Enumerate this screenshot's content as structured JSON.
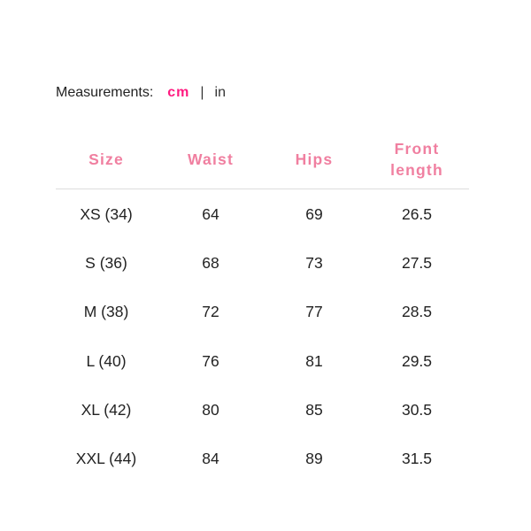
{
  "measurements": {
    "label": "Measurements:",
    "active_unit": "cm",
    "separator": "|",
    "other_unit": "in",
    "accent_color": "#ff1a80"
  },
  "table": {
    "header_color": "#f07fa0",
    "headers": [
      "Size",
      "Waist",
      "Hips",
      "Front length"
    ],
    "rows": [
      [
        "XS (34)",
        "64",
        "69",
        "26.5"
      ],
      [
        "S (36)",
        "68",
        "73",
        "27.5"
      ],
      [
        "M (38)",
        "72",
        "77",
        "28.5"
      ],
      [
        "L (40)",
        "76",
        "81",
        "29.5"
      ],
      [
        "XL (42)",
        "80",
        "85",
        "30.5"
      ],
      [
        "XXL (44)",
        "84",
        "89",
        "31.5"
      ]
    ]
  }
}
